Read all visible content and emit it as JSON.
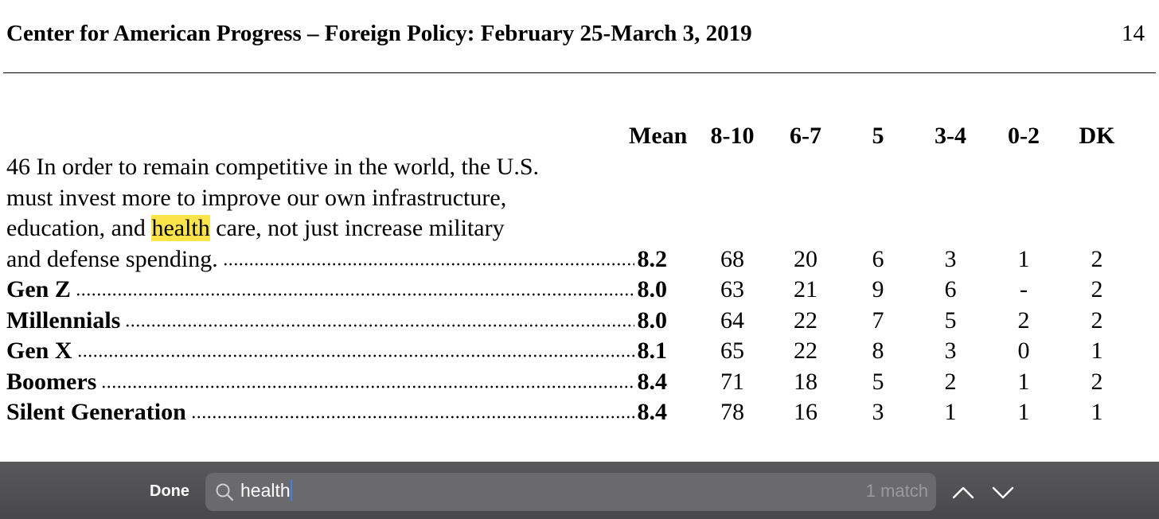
{
  "header": {
    "title": "Center for American Progress – Foreign Policy: February 25-March 3, 2019",
    "page": "14"
  },
  "table": {
    "columns": [
      "Mean",
      "8-10",
      "6-7",
      "5",
      "3-4",
      "0-2",
      "DK"
    ],
    "question": {
      "lines": [
        "46 In order to remain competitive in the world, the U.S.",
        "must invest more to improve our own infrastructure,"
      ],
      "line3": [
        "education, and ",
        "health",
        " care, not just increase military"
      ],
      "last_line": "and defense spending."
    },
    "rows": [
      {
        "label": null,
        "values": [
          "8.2",
          "68",
          "20",
          "6",
          "3",
          "1",
          "2"
        ]
      },
      {
        "label": "Gen Z",
        "values": [
          "8.0",
          "63",
          "21",
          "9",
          "6",
          "-",
          "2"
        ]
      },
      {
        "label": "Millennials",
        "values": [
          "8.0",
          "64",
          "22",
          "7",
          "5",
          "2",
          "2"
        ]
      },
      {
        "label": "Gen X",
        "values": [
          "8.1",
          "65",
          "22",
          "8",
          "3",
          "0",
          "1"
        ]
      },
      {
        "label": "Boomers",
        "values": [
          "8.4",
          "71",
          "18",
          "5",
          "2",
          "1",
          "2"
        ]
      },
      {
        "label": "Silent Generation",
        "values": [
          "8.4",
          "78",
          "16",
          "3",
          "1",
          "1",
          "1"
        ]
      }
    ]
  },
  "find_bar": {
    "done": "Done",
    "query": "health",
    "matches": "1 match"
  }
}
